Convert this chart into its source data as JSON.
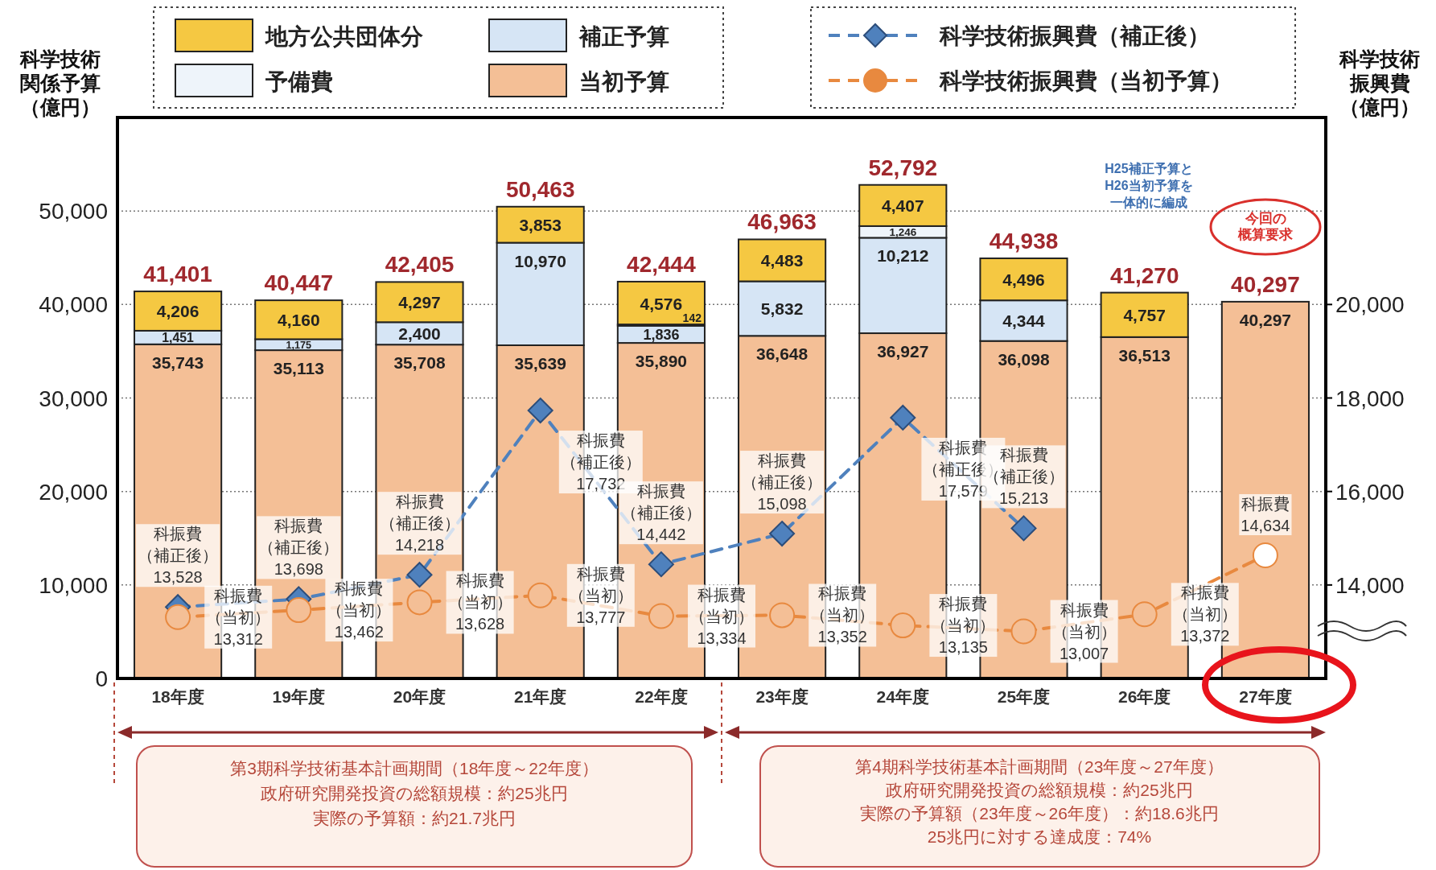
{
  "chart_data": {
    "type": "bar",
    "stacked": true,
    "ylabel": "科学技術関係予算（億円）",
    "y2label": "科学技術振興費（億円）",
    "categories": [
      "18年度",
      "19年度",
      "20年度",
      "21年度",
      "22年度",
      "23年度",
      "24年度",
      "25年度",
      "26年度",
      "27年度"
    ],
    "series": [
      {
        "name": "当初予算",
        "color": "#f4bf96",
        "values": [
          35743,
          35113,
          35708,
          35639,
          35890,
          36648,
          36927,
          36098,
          36513,
          40297
        ],
        "value_labels": [
          "35,743",
          "35,113",
          "35,708",
          "35,639",
          "35,890",
          "36,648",
          "36,927",
          "36,098",
          "36,513",
          "40,297"
        ]
      },
      {
        "name": "補正予算",
        "color": "#d6e5f5",
        "values": [
          1451,
          1175,
          2400,
          10970,
          1836,
          5832,
          10212,
          4344,
          null,
          null
        ],
        "value_labels": [
          "1,451",
          "1,175",
          "2,400",
          "10,970",
          "1,836",
          "5,832",
          "10,212",
          "4,344",
          null,
          null
        ]
      },
      {
        "name": "予備費",
        "color": "#eef4fa",
        "values": [
          null,
          null,
          null,
          null,
          142,
          null,
          1246,
          null,
          null,
          null
        ],
        "value_labels": [
          null,
          null,
          null,
          null,
          "142",
          null,
          "1,246",
          null,
          null,
          null
        ]
      },
      {
        "name": "地方公共団体分",
        "color": "#f5c842",
        "values": [
          4206,
          4160,
          4297,
          3853,
          4576,
          4483,
          4407,
          4496,
          4757,
          null
        ],
        "value_labels": [
          "4,206",
          "4,160",
          "4,297",
          "3,853",
          "4,576",
          "4,483",
          "4,407",
          "4,496",
          "4,757",
          null
        ]
      },
      {
        "name": "科学技術振興費（補正後）",
        "type": "line",
        "axis": "y2",
        "color": "#4f81bd",
        "marker": "diamond",
        "line_style": "dashed",
        "values": [
          13528,
          13698,
          14218,
          17732,
          14442,
          15098,
          17579,
          15213,
          null,
          null
        ],
        "value_labels": [
          "科振費（補正後）13,528",
          "科振費（補正後）13,698",
          "科振費（補正後）14,218",
          "科振費（補正後）17,732",
          "科振費（補正後）14,442",
          "科振費（補正後）15,098",
          "科振費（補正後）17,579",
          "科振費（補正後）15,213",
          null,
          null
        ]
      },
      {
        "name": "科学技術振興費（当初予算）",
        "type": "line",
        "axis": "y2",
        "color": "#e8893f",
        "marker": "circle",
        "line_style": "dashed",
        "colors": [
          "#f4bf96",
          "#f4bf96",
          "#f4bf96",
          "#f4bf96",
          "#f4bf96",
          "#f4bf96",
          "#f4bf96",
          "#f4bf96",
          "#f4bf96",
          "#ffffff"
        ],
        "values": [
          13312,
          13462,
          13628,
          13777,
          13334,
          13352,
          13135,
          13007,
          13372,
          14634
        ],
        "value_labels": [
          "科振費（当初）13,312",
          "科振費（当初）13,462",
          "科振費（当初）13,628",
          "科振費（当初）13,777",
          "科振費（当初）13,334",
          "科振費（当初）13,352",
          "科振費（当初）13,135",
          "科振費（当初）13,007",
          "科振費（当初）13,372",
          "科振費14,634"
        ]
      }
    ],
    "totals": [
      "41,401",
      "40,447",
      "42,405",
      "50,463",
      "42,444",
      "46,963",
      "52,792",
      "44,938",
      "41,270",
      "40,297"
    ],
    "ylim": [
      0,
      60000
    ],
    "yticks": [
      0,
      {
        "value": 10000,
        "label": "10,000"
      },
      {
        "value": 20000,
        "label": "20,000"
      },
      {
        "value": 30000,
        "label": "30,000"
      },
      {
        "value": 40000,
        "label": "40,000"
      },
      {
        "value": 50000,
        "label": "50,000"
      }
    ],
    "y2lim": [
      12000,
      24000
    ],
    "y2ticks": [
      {
        "value": 14000,
        "label": "14,000"
      },
      {
        "value": 16000,
        "label": "16,000"
      },
      {
        "value": 18000,
        "label": "18,000"
      },
      {
        "value": 20000,
        "label": "20,000"
      }
    ],
    "grid": "y",
    "legend": "top",
    "annotations": [
      "H25補正予算とH26当初予算を一体的に編成",
      "今回の概算要求",
      "第3期科学技術基本計画期間（18年度～22年度）",
      "政府研究開発投資の総額規模：約25兆円",
      "実際の予算額：約21.7兆円",
      "第4期科学技術基本計画期間（23年度～27年度）",
      "政府研究開発投資の総額規模：約25兆円",
      "実際の予算額（23年度～26年度）：約18.6兆円",
      "25兆円に対する達成度：74%"
    ]
  }
}
